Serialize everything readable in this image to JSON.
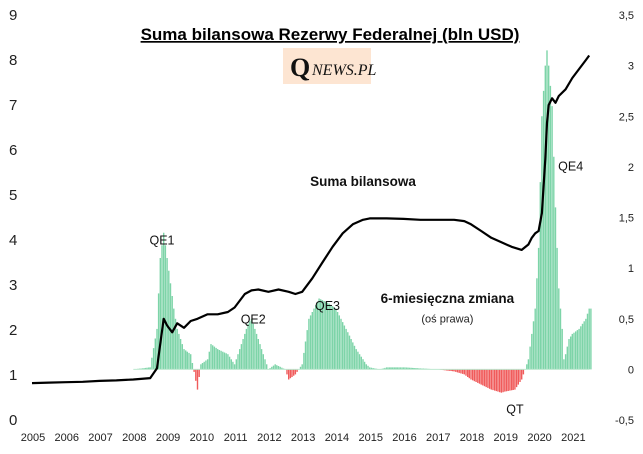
{
  "chart_data": {
    "type": "line",
    "title": "Suma bilansowa Rezerwy Federalnej (bln USD)",
    "logo": {
      "q": "Q",
      "text": "NEWS.PL"
    },
    "left_axis": {
      "ticks": [
        0,
        1,
        2,
        3,
        4,
        5,
        6,
        7,
        8,
        9
      ],
      "labels": [
        "0",
        "1",
        "2",
        "3",
        "4",
        "5",
        "6",
        "7",
        "8",
        "9"
      ],
      "ylim": [
        0,
        9
      ]
    },
    "right_axis": {
      "ticks": [
        -0.5,
        0,
        0.5,
        1,
        1.5,
        2,
        2.5,
        3,
        3.5
      ],
      "labels": [
        "-0,5",
        "0",
        "0,5",
        "1",
        "1,5",
        "2",
        "2,5",
        "3",
        "3,5"
      ],
      "ylim": [
        -0.5,
        3.5
      ]
    },
    "x_axis": {
      "ticks": [
        2005,
        2006,
        2007,
        2008,
        2009,
        2010,
        2011,
        2012,
        2013,
        2014,
        2015,
        2016,
        2017,
        2018,
        2019,
        2020,
        2021
      ],
      "labels": [
        "2005",
        "2006",
        "2007",
        "2008",
        "2009",
        "2010",
        "2011",
        "2012",
        "2013",
        "2014",
        "2015",
        "2016",
        "2017",
        "2018",
        "2019",
        "2020",
        "2021"
      ],
      "xlim": [
        2005,
        2022.5
      ]
    },
    "series": [
      {
        "name": "Suma bilansowa",
        "axis": "left",
        "color": "#000000",
        "x": [
          2005.0,
          2005.5,
          2006.0,
          2006.5,
          2007.0,
          2007.5,
          2008.0,
          2008.5,
          2008.7,
          2008.8,
          2008.9,
          2009.0,
          2009.15,
          2009.3,
          2009.5,
          2009.7,
          2009.9,
          2010.2,
          2010.5,
          2010.8,
          2011.0,
          2011.3,
          2011.5,
          2011.7,
          2012.0,
          2012.3,
          2012.6,
          2012.8,
          2013.0,
          2013.3,
          2013.6,
          2013.9,
          2014.2,
          2014.5,
          2014.8,
          2015.0,
          2015.5,
          2016.0,
          2016.5,
          2017.0,
          2017.5,
          2017.8,
          2018.0,
          2018.3,
          2018.6,
          2018.9,
          2019.2,
          2019.5,
          2019.7,
          2019.8,
          2019.9,
          2020.0,
          2020.1,
          2020.2,
          2020.25,
          2020.3,
          2020.4,
          2020.5,
          2020.6,
          2020.8,
          2021.0,
          2021.2,
          2021.4,
          2021.5
        ],
        "values": [
          0.82,
          0.83,
          0.84,
          0.85,
          0.87,
          0.88,
          0.9,
          0.93,
          1.15,
          1.7,
          2.25,
          2.1,
          1.95,
          2.15,
          2.05,
          2.2,
          2.25,
          2.35,
          2.35,
          2.4,
          2.5,
          2.8,
          2.88,
          2.9,
          2.85,
          2.9,
          2.85,
          2.8,
          2.85,
          3.15,
          3.5,
          3.85,
          4.15,
          4.35,
          4.45,
          4.48,
          4.48,
          4.47,
          4.45,
          4.45,
          4.45,
          4.42,
          4.35,
          4.2,
          4.05,
          3.95,
          3.85,
          3.78,
          3.9,
          4.05,
          4.15,
          4.2,
          4.6,
          5.8,
          6.6,
          7.0,
          7.15,
          7.05,
          7.2,
          7.35,
          7.6,
          7.8,
          8.0,
          8.1
        ]
      },
      {
        "name": "6-miesięczna zmiana",
        "axis": "right",
        "type": "bar",
        "color_positive": "#7dd4a8",
        "color_negative": "#f05b5b",
        "x": [
          2008.0,
          2008.5,
          2008.7,
          2008.8,
          2008.9,
          2009.0,
          2009.2,
          2009.3,
          2009.5,
          2009.7,
          2009.9,
          2010.0,
          2010.2,
          2010.3,
          2010.5,
          2010.8,
          2011.0,
          2011.2,
          2011.4,
          2011.5,
          2011.7,
          2011.9,
          2012.0,
          2012.2,
          2012.5,
          2012.6,
          2012.8,
          2012.9,
          2013.0,
          2013.2,
          2013.5,
          2013.8,
          2014.0,
          2014.3,
          2014.6,
          2014.9,
          2015.0,
          2015.3,
          2015.5,
          2016.0,
          2016.5,
          2017.0,
          2017.5,
          2017.8,
          2018.0,
          2018.3,
          2018.6,
          2018.9,
          2019.0,
          2019.3,
          2019.5,
          2019.7,
          2019.8,
          2019.9,
          2020.0,
          2020.1,
          2020.2,
          2020.25,
          2020.3,
          2020.4,
          2020.5,
          2020.6,
          2020.7,
          2020.75,
          2020.8,
          2020.9,
          2021.0,
          2021.2,
          2021.4,
          2021.5
        ],
        "values": [
          0.0,
          0.02,
          0.4,
          1.1,
          1.35,
          1.1,
          0.6,
          0.4,
          0.2,
          0.15,
          -0.2,
          0.05,
          0.1,
          0.25,
          0.2,
          0.15,
          0.05,
          0.25,
          0.45,
          0.5,
          0.3,
          0.1,
          0.0,
          0.05,
          0.0,
          -0.1,
          -0.05,
          0.0,
          0.05,
          0.5,
          0.7,
          0.65,
          0.6,
          0.4,
          0.2,
          0.05,
          0.02,
          0.0,
          0.02,
          0.02,
          0.01,
          0.0,
          -0.02,
          -0.05,
          -0.1,
          -0.15,
          -0.2,
          -0.23,
          -0.22,
          -0.2,
          -0.1,
          0.1,
          0.35,
          0.6,
          1.2,
          2.5,
          3.0,
          3.15,
          3.0,
          2.6,
          1.6,
          0.8,
          0.4,
          0.1,
          0.15,
          0.3,
          0.35,
          0.4,
          0.5,
          0.6
        ]
      }
    ],
    "annotations": [
      {
        "text": "QE1",
        "x": 2008.85,
        "y_left": 3.9,
        "style": "normal"
      },
      {
        "text": "QE2",
        "x": 2011.55,
        "y_left": 2.15,
        "style": "normal"
      },
      {
        "text": "QE3",
        "x": 2013.75,
        "y_left": 2.45,
        "style": "normal"
      },
      {
        "text": "QE4",
        "x": 2020.95,
        "y_left": 5.55,
        "style": "normal"
      },
      {
        "text": "QT",
        "x": 2019.3,
        "y_left": 0.15,
        "style": "normal"
      },
      {
        "text": "Suma bilansowa",
        "x": 2014.8,
        "y_left": 5.2,
        "style": "bold"
      },
      {
        "text": "6-miesięczna zmiana",
        "x": 2017.3,
        "y_left": 2.6,
        "style": "bold"
      },
      {
        "text": "(oś prawa)",
        "x": 2017.3,
        "y_left": 2.17,
        "style": "small"
      }
    ]
  }
}
